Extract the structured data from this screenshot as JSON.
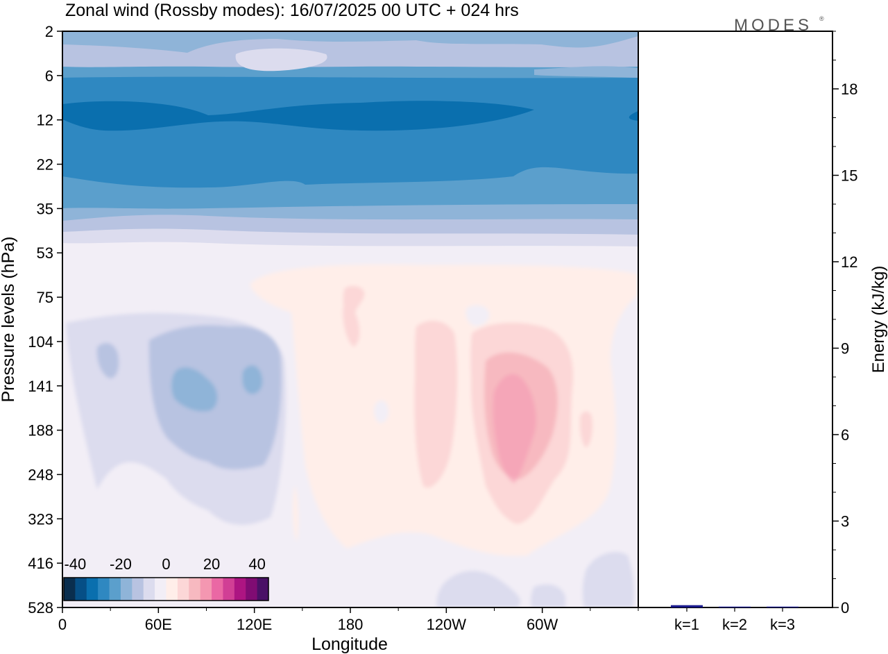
{
  "title": "Zonal wind (Rossby modes):  16/07/2025  00 UTC  + 024 hrs",
  "logo": "MODES",
  "logo_mark": "®",
  "chart_data": [
    {
      "type": "heatmap",
      "xlabel": "Longitude",
      "ylabel": "Pressure levels (hPa)",
      "x_ticks": [
        "0",
        "60E",
        "120E",
        "180",
        "120W",
        "60W"
      ],
      "x_tick_degrees": [
        0,
        60,
        120,
        180,
        240,
        300
      ],
      "x_range_degrees": [
        0,
        360
      ],
      "y_ticks": [
        "2",
        "6",
        "12",
        "22",
        "35",
        "53",
        "75",
        "104",
        "141",
        "188",
        "248",
        "323",
        "416",
        "528"
      ],
      "y_axis": "pressure (hPa), increasing downward",
      "colorbar": {
        "tick_labels": [
          "-40",
          "-20",
          "0",
          "20",
          "40"
        ],
        "tick_values": [
          -40,
          -20,
          0,
          20,
          40
        ],
        "range": [
          -45,
          45
        ],
        "step": 5,
        "colors": [
          "#0a2e4e",
          "#064f86",
          "#0a6fae",
          "#2f88c1",
          "#5b9fcc",
          "#8fb4d8",
          "#b8c3e1",
          "#dcdcee",
          "#f2eef6",
          "#ffeee9",
          "#fcd7d7",
          "#f7b9c0",
          "#f497b1",
          "#ea68a4",
          "#d13f95",
          "#ad1582",
          "#800c73",
          "#4a1166"
        ]
      },
      "regions": [
        {
          "name": "upper-stratosphere",
          "levels_hPa": [
            2,
            6
          ],
          "value_range": [
            -20,
            -5
          ]
        },
        {
          "name": "easterly-jet",
          "levels_hPa": [
            10,
            22
          ],
          "value_range": [
            -35,
            -25
          ],
          "longitudes": "global"
        },
        {
          "name": "lower-stratosphere",
          "levels_hPa": [
            25,
            53
          ],
          "value_range": [
            -20,
            -5
          ]
        },
        {
          "name": "eastern-hemisphere-negative",
          "levels_hPa": [
            85,
            330
          ],
          "longitudes": "0-140E",
          "min_value": -15
        },
        {
          "name": "western-hemisphere-positive",
          "levels_hPa": [
            55,
            330
          ],
          "longitudes": "135E-20W",
          "max_value": 15
        }
      ]
    },
    {
      "type": "bar",
      "ylabel": "Energy (kJ/kg)",
      "categories": [
        "k=1",
        "k=2",
        "k=3"
      ],
      "values": [
        0.08,
        0.03,
        0.03
      ],
      "ylim": [
        0,
        20
      ],
      "y_ticks": [
        "0",
        "3",
        "6",
        "9",
        "12",
        "15",
        "18"
      ],
      "y_tick_values": [
        0,
        3,
        6,
        9,
        12,
        15,
        18
      ],
      "bar_color": "#1a1a8c"
    }
  ]
}
